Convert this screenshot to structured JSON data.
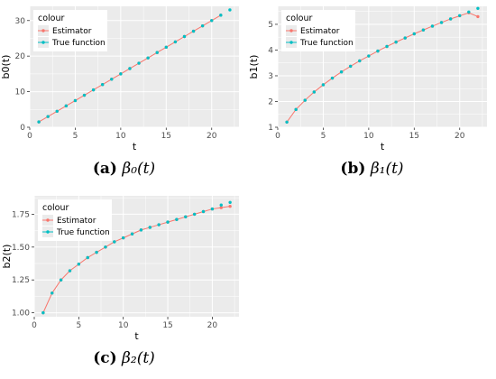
{
  "legend": {
    "title": "colour",
    "estimator_label": "Estimator",
    "true_label": "True function",
    "estimator_color": "#F8766D",
    "true_color": "#00BFC4"
  },
  "panel_bg": "#EBEBEB",
  "grid_color": "#FFFFFF",
  "captions": [
    {
      "label": "(a)",
      "math": "β₀(t)"
    },
    {
      "label": "(b)",
      "math": "β₁(t)"
    },
    {
      "label": "(c)",
      "math": "β₂(t)"
    }
  ],
  "chart_data": [
    {
      "type": "line",
      "xlabel": "t",
      "ylabel": "b0(t)",
      "xlim": [
        0,
        23
      ],
      "ylim": [
        0,
        34
      ],
      "xticks": [
        0,
        5,
        10,
        15,
        20
      ],
      "yticks": [
        0,
        10,
        20,
        30
      ],
      "legend_position": "top-left",
      "series": [
        {
          "name": "Estimator",
          "x": [
            1,
            2,
            3,
            4,
            5,
            6,
            7,
            8,
            9,
            10,
            11,
            12,
            13,
            14,
            15,
            16,
            17,
            18,
            19,
            20,
            21
          ],
          "y": [
            1.5,
            3.0,
            4.5,
            6.0,
            7.5,
            9.0,
            10.5,
            12.0,
            13.5,
            15.0,
            16.5,
            18.0,
            19.5,
            21.0,
            22.5,
            24.0,
            25.5,
            27.0,
            28.5,
            30.0,
            31.5
          ]
        },
        {
          "name": "True function",
          "x": [
            1,
            2,
            3,
            4,
            5,
            6,
            7,
            8,
            9,
            10,
            11,
            12,
            13,
            14,
            15,
            16,
            17,
            18,
            19,
            20,
            21,
            22
          ],
          "y": [
            1.5,
            3.0,
            4.5,
            6.0,
            7.5,
            9.0,
            10.5,
            12.0,
            13.5,
            15.0,
            16.5,
            18.0,
            19.5,
            21.0,
            22.5,
            24.0,
            25.5,
            27.0,
            28.5,
            30.0,
            31.5,
            33.0
          ]
        }
      ]
    },
    {
      "type": "line",
      "xlabel": "t",
      "ylabel": "b1(t)",
      "xlim": [
        0,
        23
      ],
      "ylim": [
        1,
        5.7
      ],
      "xticks": [
        0,
        5,
        10,
        15,
        20
      ],
      "yticks": [
        1,
        2,
        3,
        4,
        5
      ],
      "legend_position": "top-left",
      "series": [
        {
          "name": "Estimator",
          "x": [
            1,
            2,
            3,
            4,
            5,
            6,
            7,
            8,
            9,
            10,
            11,
            12,
            13,
            14,
            15,
            16,
            17,
            18,
            19,
            20,
            21,
            22
          ],
          "y": [
            1.2,
            1.69,
            2.05,
            2.37,
            2.65,
            2.91,
            3.15,
            3.37,
            3.58,
            3.77,
            3.96,
            4.14,
            4.31,
            4.47,
            4.63,
            4.78,
            4.93,
            5.07,
            5.21,
            5.33,
            5.45,
            5.3
          ]
        },
        {
          "name": "True function",
          "x": [
            1,
            2,
            3,
            4,
            5,
            6,
            7,
            8,
            9,
            10,
            11,
            12,
            13,
            14,
            15,
            16,
            17,
            18,
            19,
            20,
            21,
            22
          ],
          "y": [
            1.2,
            1.69,
            2.05,
            2.37,
            2.65,
            2.91,
            3.15,
            3.37,
            3.58,
            3.77,
            3.96,
            4.14,
            4.31,
            4.47,
            4.63,
            4.78,
            4.93,
            5.07,
            5.21,
            5.34,
            5.48,
            5.62
          ]
        }
      ]
    },
    {
      "type": "line",
      "xlabel": "t",
      "ylabel": "b2(t)",
      "xlim": [
        0,
        23
      ],
      "ylim": [
        0.97,
        1.89
      ],
      "xticks": [
        0,
        5,
        10,
        15,
        20
      ],
      "yticks": [
        1.0,
        1.25,
        1.5,
        1.75
      ],
      "ytick_labels": [
        "1.00",
        "1.25",
        "1.50",
        "1.75"
      ],
      "legend_position": "top-left",
      "series": [
        {
          "name": "Estimator",
          "x": [
            1,
            2,
            3,
            4,
            5,
            6,
            7,
            8,
            9,
            10,
            11,
            12,
            13,
            14,
            15,
            16,
            17,
            18,
            19,
            20,
            21,
            22
          ],
          "y": [
            1.0,
            1.15,
            1.25,
            1.32,
            1.37,
            1.42,
            1.46,
            1.5,
            1.54,
            1.57,
            1.6,
            1.63,
            1.65,
            1.67,
            1.69,
            1.71,
            1.73,
            1.75,
            1.77,
            1.79,
            1.8,
            1.81
          ]
        },
        {
          "name": "True function",
          "x": [
            1,
            2,
            3,
            4,
            5,
            6,
            7,
            8,
            9,
            10,
            11,
            12,
            13,
            14,
            15,
            16,
            17,
            18,
            19,
            20,
            21,
            22
          ],
          "y": [
            1.0,
            1.15,
            1.25,
            1.32,
            1.37,
            1.42,
            1.46,
            1.5,
            1.54,
            1.57,
            1.6,
            1.63,
            1.65,
            1.67,
            1.69,
            1.71,
            1.73,
            1.75,
            1.77,
            1.79,
            1.82,
            1.84
          ]
        }
      ]
    }
  ]
}
